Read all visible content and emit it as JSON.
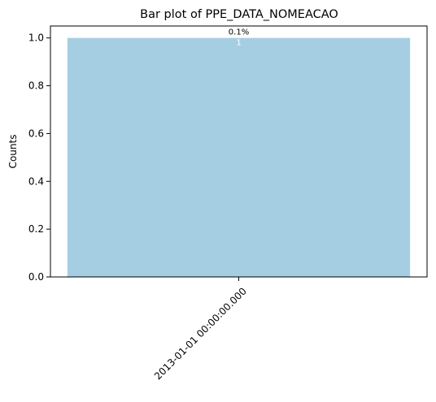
{
  "chart_data": {
    "type": "bar",
    "title": "Bar plot of PPE_DATA_NOMEACAO",
    "xlabel": "",
    "ylabel": "Counts",
    "categories": [
      "2013-01-01 00:00:00.000"
    ],
    "values": [
      1
    ],
    "percent_labels": [
      "0.1%"
    ],
    "value_labels": [
      "1"
    ],
    "ylim": [
      0,
      1.05
    ],
    "yticks": [
      0.0,
      0.2,
      0.4,
      0.6,
      0.8,
      1.0
    ],
    "ytick_labels": [
      "0.0",
      "0.2",
      "0.4",
      "0.6",
      "0.8",
      "1.0"
    ],
    "grid": false,
    "bar_color": "#a6cee3"
  }
}
